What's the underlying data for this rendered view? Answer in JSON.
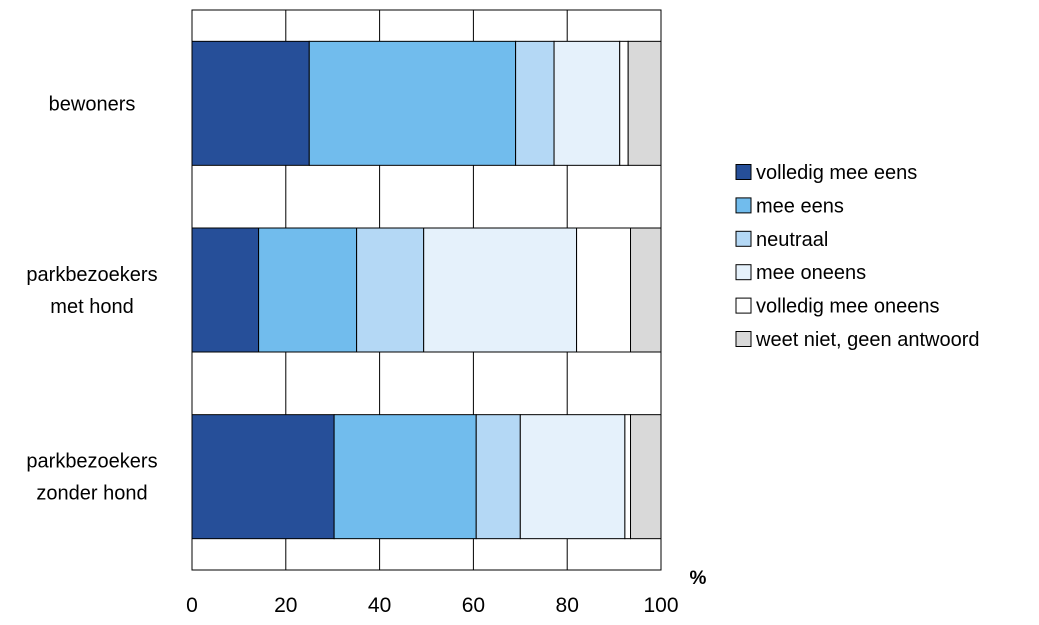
{
  "chart_data": {
    "type": "bar",
    "orientation": "horizontal",
    "stacked": true,
    "categories": [
      [
        "bewoners"
      ],
      [
        "parkbezoekers",
        "met hond"
      ],
      [
        "parkbezoekers",
        "zonder hond"
      ]
    ],
    "series": [
      {
        "name": "volledig mee eens",
        "color": "#264f99",
        "values": [
          25.0,
          14.2,
          30.3
        ]
      },
      {
        "name": "mee eens",
        "color": "#71bced",
        "values": [
          44.0,
          20.9,
          30.3
        ]
      },
      {
        "name": "neutraal",
        "color": "#b4d8f5",
        "values": [
          8.2,
          14.3,
          9.4
        ]
      },
      {
        "name": "mee oneens",
        "color": "#e5f1fb",
        "values": [
          14.0,
          32.6,
          22.3
        ]
      },
      {
        "name": "volledig mee oneens",
        "color": "#ffffff",
        "values": [
          1.8,
          11.5,
          1.2
        ]
      },
      {
        "name": "weet niet, geen antwoord",
        "color": "#d9d9d9",
        "values": [
          7.0,
          6.5,
          6.5
        ]
      }
    ],
    "x_tick_labels": [
      "0",
      "20",
      "40",
      "60",
      "80",
      "100"
    ],
    "xlim": [
      0,
      100
    ],
    "xlabel": "%",
    "grid": true,
    "legend_position": "right"
  }
}
